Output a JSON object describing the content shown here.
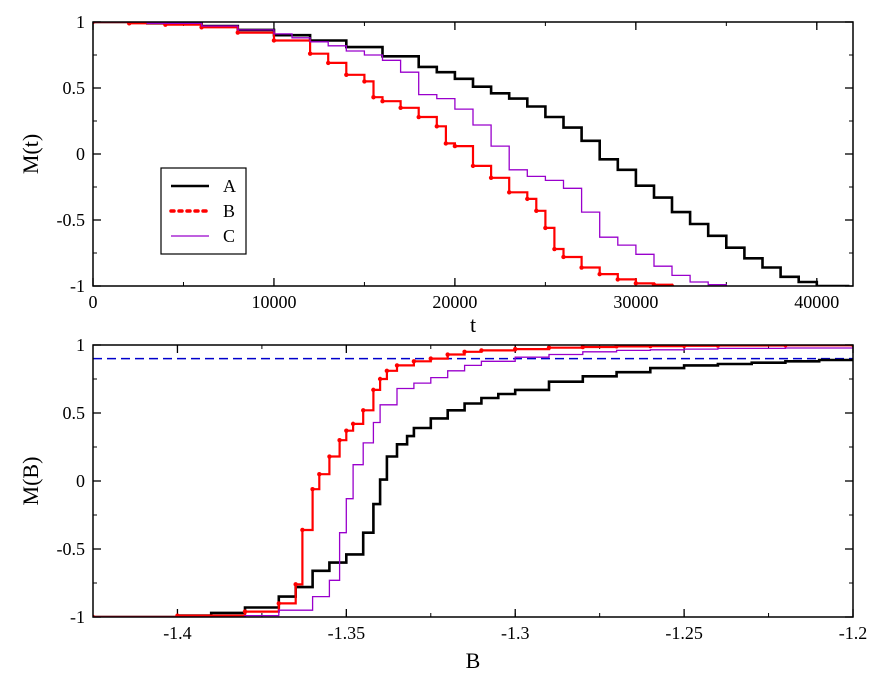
{
  "chart_data": [
    {
      "type": "line",
      "title": "",
      "xlabel": "t",
      "ylabel": "M(t)",
      "xlim": [
        0,
        42000
      ],
      "ylim": [
        -1,
        1
      ],
      "xticks": [
        0,
        10000,
        20000,
        30000,
        40000
      ],
      "xtick_labels": [
        "0",
        "10000",
        "20000",
        "30000",
        "40000"
      ],
      "yticks": [
        -1,
        -0.5,
        0,
        0.5,
        1
      ],
      "ytick_labels": [
        "-1",
        "-0.5",
        "0",
        "0.5",
        "1"
      ],
      "grid": false,
      "legend": {
        "position": "center-left",
        "entries": [
          "A",
          "B",
          "C"
        ]
      },
      "series": [
        {
          "name": "A",
          "color": "#000000",
          "style": "solid-thick",
          "x": [
            0,
            3000,
            6000,
            8000,
            10000,
            12000,
            14000,
            16000,
            18000,
            19000,
            20000,
            21000,
            22000,
            23000,
            24000,
            25000,
            26000,
            27000,
            28000,
            29000,
            30000,
            31000,
            32000,
            33000,
            34000,
            35000,
            36000,
            37000,
            38000,
            39000,
            40000,
            41000,
            41800
          ],
          "y": [
            1,
            0.99,
            0.97,
            0.94,
            0.9,
            0.86,
            0.81,
            0.74,
            0.66,
            0.62,
            0.57,
            0.51,
            0.46,
            0.42,
            0.36,
            0.28,
            0.2,
            0.1,
            -0.04,
            -0.12,
            -0.24,
            -0.33,
            -0.44,
            -0.53,
            -0.62,
            -0.71,
            -0.79,
            -0.86,
            -0.93,
            -0.97,
            -1,
            -1,
            -1
          ]
        },
        {
          "name": "B",
          "color": "#ff0000",
          "style": "dotted-markers",
          "x": [
            0,
            2000,
            4000,
            6000,
            8000,
            10000,
            12000,
            13000,
            14000,
            15000,
            15500,
            16000,
            17000,
            18000,
            19000,
            19500,
            20000,
            21000,
            22000,
            23000,
            24000,
            24500,
            25000,
            25500,
            26000,
            27000,
            28000,
            29000,
            30000,
            31000,
            32000
          ],
          "y": [
            1,
            0.99,
            0.98,
            0.96,
            0.92,
            0.86,
            0.76,
            0.69,
            0.6,
            0.55,
            0.43,
            0.4,
            0.35,
            0.28,
            0.21,
            0.08,
            0.06,
            -0.09,
            -0.18,
            -0.29,
            -0.34,
            -0.43,
            -0.56,
            -0.72,
            -0.78,
            -0.86,
            -0.91,
            -0.95,
            -0.98,
            -0.99,
            -1
          ]
        },
        {
          "name": "C",
          "color": "#9900cc",
          "style": "solid-thin",
          "x": [
            0,
            3000,
            6000,
            8000,
            10000,
            11000,
            12000,
            13000,
            14000,
            15000,
            16000,
            17000,
            18000,
            19000,
            20000,
            21000,
            22000,
            23000,
            24000,
            25000,
            26000,
            27000,
            28000,
            29000,
            30000,
            31000,
            32000,
            33000,
            34000,
            35000
          ],
          "y": [
            1,
            0.99,
            0.97,
            0.94,
            0.91,
            0.88,
            0.85,
            0.82,
            0.78,
            0.75,
            0.71,
            0.62,
            0.45,
            0.42,
            0.34,
            0.22,
            0.06,
            -0.12,
            -0.17,
            -0.2,
            -0.26,
            -0.44,
            -0.63,
            -0.69,
            -0.76,
            -0.85,
            -0.92,
            -0.97,
            -0.99,
            -1
          ]
        }
      ]
    },
    {
      "type": "line",
      "title": "",
      "xlabel": "B",
      "ylabel": "M(B)",
      "xlim": [
        -1.425,
        -1.2
      ],
      "ylim": [
        -1,
        1
      ],
      "xticks": [
        -1.4,
        -1.35,
        -1.3,
        -1.25,
        -1.2
      ],
      "xtick_labels": [
        "-1.4",
        "-1.35",
        "-1.3",
        "-1.25",
        "-1.2"
      ],
      "yticks": [
        -1,
        -0.5,
        0,
        0.5,
        1
      ],
      "ytick_labels": [
        "-1",
        "-0.5",
        "0",
        "0.5",
        "1"
      ],
      "grid": false,
      "reference_line": {
        "y": 0.9,
        "color": "#0000cc",
        "style": "dashed"
      },
      "series": [
        {
          "name": "A",
          "color": "#000000",
          "style": "solid-thick",
          "x": [
            -1.425,
            -1.4,
            -1.39,
            -1.38,
            -1.37,
            -1.365,
            -1.36,
            -1.355,
            -1.35,
            -1.345,
            -1.342,
            -1.34,
            -1.338,
            -1.335,
            -1.332,
            -1.33,
            -1.325,
            -1.32,
            -1.315,
            -1.31,
            -1.305,
            -1.3,
            -1.29,
            -1.28,
            -1.27,
            -1.26,
            -1.25,
            -1.24,
            -1.23,
            -1.22,
            -1.21,
            -1.2
          ],
          "y": [
            -1,
            -0.99,
            -0.97,
            -0.93,
            -0.85,
            -0.78,
            -0.66,
            -0.6,
            -0.54,
            -0.38,
            -0.17,
            0.01,
            0.18,
            0.27,
            0.33,
            0.39,
            0.46,
            0.52,
            0.57,
            0.61,
            0.64,
            0.67,
            0.73,
            0.77,
            0.8,
            0.83,
            0.85,
            0.86,
            0.87,
            0.88,
            0.89,
            0.9
          ]
        },
        {
          "name": "B",
          "color": "#ff0000",
          "style": "dotted-markers",
          "x": [
            -1.425,
            -1.4,
            -1.38,
            -1.37,
            -1.365,
            -1.363,
            -1.36,
            -1.358,
            -1.355,
            -1.352,
            -1.35,
            -1.348,
            -1.345,
            -1.342,
            -1.34,
            -1.338,
            -1.335,
            -1.33,
            -1.325,
            -1.32,
            -1.315,
            -1.31,
            -1.3,
            -1.29,
            -1.28,
            -1.27,
            -1.26,
            -1.25,
            -1.24,
            -1.22,
            -1.2
          ],
          "y": [
            -1,
            -0.99,
            -0.96,
            -0.9,
            -0.76,
            -0.36,
            -0.06,
            0.05,
            0.18,
            0.3,
            0.37,
            0.42,
            0.52,
            0.67,
            0.75,
            0.81,
            0.85,
            0.88,
            0.9,
            0.93,
            0.95,
            0.96,
            0.97,
            0.98,
            0.985,
            0.99,
            0.992,
            0.994,
            0.996,
            0.998,
            1
          ]
        },
        {
          "name": "C",
          "color": "#9900cc",
          "style": "solid-thin",
          "x": [
            -1.425,
            -1.4,
            -1.38,
            -1.37,
            -1.36,
            -1.355,
            -1.352,
            -1.35,
            -1.348,
            -1.345,
            -1.342,
            -1.34,
            -1.335,
            -1.33,
            -1.325,
            -1.32,
            -1.315,
            -1.31,
            -1.3,
            -1.29,
            -1.28,
            -1.27,
            -1.26,
            -1.25,
            -1.24,
            -1.22,
            -1.2
          ],
          "y": [
            -1,
            -1,
            -0.99,
            -0.95,
            -0.85,
            -0.73,
            -0.38,
            -0.13,
            0.12,
            0.28,
            0.43,
            0.56,
            0.68,
            0.72,
            0.76,
            0.81,
            0.85,
            0.88,
            0.91,
            0.93,
            0.95,
            0.96,
            0.965,
            0.97,
            0.975,
            0.978,
            0.98
          ]
        }
      ]
    }
  ]
}
